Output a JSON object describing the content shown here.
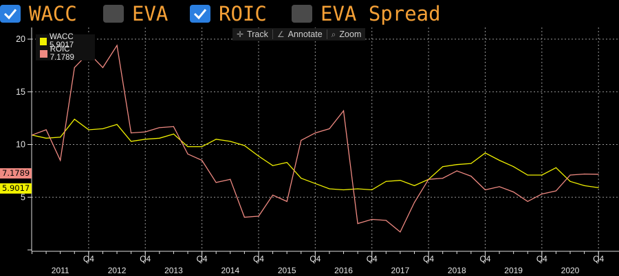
{
  "toggles": [
    {
      "label": "WACC",
      "checked": true,
      "icon": "checkbox-checked-icon"
    },
    {
      "label": "EVA",
      "checked": false,
      "icon": "checkbox-empty-icon"
    },
    {
      "label": "ROIC",
      "checked": true,
      "icon": "checkbox-checked-icon"
    },
    {
      "label": "EVA Spread",
      "checked": false,
      "icon": "checkbox-empty-icon"
    }
  ],
  "toolbar": {
    "track": "Track",
    "track_icon": "crosshair-icon",
    "annotate": "Annotate",
    "annotate_icon": "pencil-icon",
    "zoom": "Zoom",
    "zoom_icon": "magnifier-icon"
  },
  "legend": [
    {
      "label": "WACC 5.9017",
      "color": "#f0f000"
    },
    {
      "label": "ROIC 7.1789",
      "color": "#f08a82"
    }
  ],
  "tags": {
    "roic": "7.1789",
    "roic_color": "#f08a82",
    "wacc": "5.9017",
    "wacc_color": "#f0f000"
  },
  "chart_data": {
    "type": "line",
    "x": [
      "2010 Q4",
      "2011 Q1",
      "2011 Q2",
      "2011 Q3",
      "2011 Q4",
      "2012 Q1",
      "2012 Q2",
      "2012 Q3",
      "2012 Q4",
      "2013 Q1",
      "2013 Q2",
      "2013 Q3",
      "2013 Q4",
      "2014 Q1",
      "2014 Q2",
      "2014 Q3",
      "2014 Q4",
      "2015 Q1",
      "2015 Q2",
      "2015 Q3",
      "2015 Q4",
      "2016 Q1",
      "2016 Q2",
      "2016 Q3",
      "2016 Q4",
      "2017 Q1",
      "2017 Q2",
      "2017 Q3",
      "2017 Q4",
      "2018 Q1",
      "2018 Q2",
      "2018 Q3",
      "2018 Q4",
      "2019 Q1",
      "2019 Q2",
      "2019 Q3",
      "2019 Q4",
      "2020 Q1",
      "2020 Q2",
      "2020 Q3",
      "2020 Q4"
    ],
    "series": [
      {
        "name": "WACC",
        "color": "#f0f000",
        "values": [
          10.9,
          10.6,
          10.7,
          12.4,
          11.4,
          11.5,
          11.9,
          10.3,
          10.5,
          10.6,
          11.0,
          9.8,
          9.8,
          10.5,
          10.3,
          9.9,
          8.9,
          8.0,
          8.3,
          6.8,
          6.3,
          5.8,
          5.7,
          5.8,
          5.7,
          6.5,
          6.6,
          6.1,
          6.7,
          7.9,
          8.1,
          8.2,
          9.2,
          8.5,
          7.9,
          7.1,
          7.1,
          7.8,
          6.5,
          6.1,
          5.9017
        ]
      },
      {
        "name": "ROIC",
        "color": "#f08a82",
        "values": [
          10.9,
          11.4,
          8.5,
          17.3,
          18.7,
          17.3,
          19.4,
          11.1,
          11.2,
          11.6,
          11.7,
          9.1,
          8.5,
          6.4,
          6.7,
          3.1,
          3.2,
          5.2,
          4.6,
          10.4,
          11.1,
          11.5,
          13.2,
          2.5,
          2.9,
          2.8,
          1.7,
          4.5,
          6.7,
          6.8,
          7.5,
          7.0,
          5.7,
          6.0,
          5.5,
          4.6,
          5.3,
          5.6,
          7.1,
          7.2,
          7.1789
        ]
      }
    ],
    "y_ticks": [
      5,
      10,
      15,
      20
    ],
    "ylim": [
      0,
      21
    ],
    "x_year_labels": [
      "2011",
      "2012",
      "2013",
      "2014",
      "2015",
      "2016",
      "2017",
      "2018",
      "2019",
      "2020"
    ],
    "x_q4_label": "Q4",
    "grid": true
  }
}
